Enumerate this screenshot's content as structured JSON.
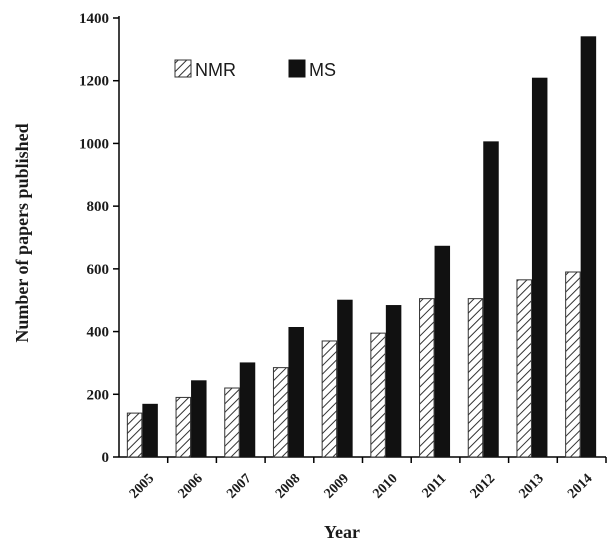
{
  "chart_data": {
    "type": "bar",
    "categories": [
      "2005",
      "2006",
      "2007",
      "2008",
      "2009",
      "2010",
      "2011",
      "2012",
      "2013",
      "2014"
    ],
    "series": [
      {
        "name": "NMR",
        "values": [
          140,
          190,
          220,
          285,
          370,
          395,
          505,
          505,
          565,
          590
        ],
        "fill": "hatched"
      },
      {
        "name": "MS",
        "values": [
          168,
          243,
          300,
          413,
          500,
          483,
          672,
          1005,
          1208,
          1340
        ],
        "fill": "#111111"
      }
    ],
    "title": "",
    "xlabel": "Year",
    "ylabel": "Number of papers published",
    "ylim": [
      0,
      1400
    ],
    "yticks": [
      0,
      200,
      400,
      600,
      800,
      1000,
      1200,
      1400
    ],
    "grid": false,
    "legend_position": "top-left"
  }
}
